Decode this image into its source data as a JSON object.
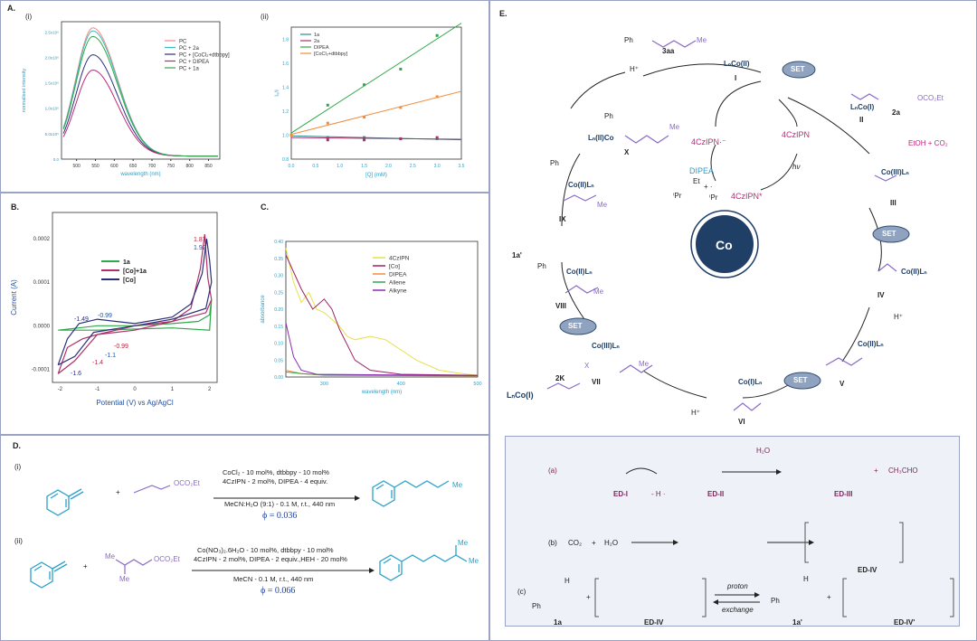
{
  "panels": {
    "A": "A.",
    "A_i": "(i)",
    "A_ii": "(ii)",
    "B": "B.",
    "C": "C.",
    "D": "D.",
    "D_i": "(i)",
    "D_ii": "(ii)",
    "E": "E."
  },
  "chart_data": [
    {
      "type": "line",
      "panel": "A(i)",
      "xlabel": "wavelength (nm)",
      "ylabel": "normalised intensity",
      "xlim": [
        460,
        880
      ],
      "ylim": [
        0,
        2700000
      ],
      "xticks": [
        "500",
        "550",
        "600",
        "650",
        "700",
        "750",
        "800",
        "850"
      ],
      "yticks": [
        "0.0",
        "5.0x10⁵",
        "1.0x10⁶",
        "1.5x10⁶",
        "2.0x10⁶",
        "2.5x10⁶"
      ],
      "series": [
        {
          "name": "PC",
          "color": "#f08c8c",
          "peak": 2520000
        },
        {
          "name": "PC + 2a",
          "color": "#3bb8b8",
          "peak": 2460000
        },
        {
          "name": "PC + [CoCl₂+dtbbpy]",
          "color": "#2b2f7a",
          "peak": 1990000
        },
        {
          "name": "PC + DIPEA",
          "color": "#c0277a",
          "peak": 1690000
        },
        {
          "name": "PC + 1a",
          "color": "#2ea84a",
          "peak": 2350000
        }
      ],
      "peak_x": 543
    },
    {
      "type": "scatter",
      "panel": "A(ii)",
      "xlabel": "[Q] (mM)",
      "ylabel": "I₀/I",
      "xlim": [
        0,
        3.5
      ],
      "ylim": [
        0.8,
        1.9
      ],
      "xticks": [
        "0.0",
        "0.5",
        "1.0",
        "1.5",
        "2.0",
        "2.5",
        "3.0",
        "3.5"
      ],
      "yticks": [
        "0.8",
        "1.0",
        "1.2",
        "1.4",
        "1.6",
        "1.8"
      ],
      "series": [
        {
          "name": "1a",
          "color": "#2b8c8c",
          "x": [
            0,
            0.75,
            1.5,
            2.25,
            3.0
          ],
          "y": [
            1.0,
            0.98,
            0.98,
            0.97,
            0.97
          ]
        },
        {
          "name": "2a",
          "color": "#b0306a",
          "x": [
            0,
            0.75,
            1.5,
            2.25,
            3.0
          ],
          "y": [
            1.0,
            0.96,
            0.96,
            0.97,
            0.98
          ]
        },
        {
          "name": "DIPEA",
          "color": "#2ea84a",
          "x": [
            0,
            0.75,
            1.5,
            2.25,
            3.0
          ],
          "y": [
            1.0,
            1.25,
            1.42,
            1.55,
            1.83
          ]
        },
        {
          "name": "[CoCl₂+dtbbpy]",
          "color": "#f08c3c",
          "x": [
            0,
            0.75,
            1.5,
            2.25,
            3.0
          ],
          "y": [
            1.0,
            1.1,
            1.15,
            1.23,
            1.32
          ]
        }
      ]
    },
    {
      "type": "line",
      "panel": "B",
      "xlabel": "Potential (V) vs Ag/AgCl",
      "ylabel": "Current (A)",
      "xlim": [
        -2.2,
        2.2
      ],
      "ylim": [
        -0.00013,
        0.00026
      ],
      "xticks": [
        "-2",
        "-1",
        "0",
        "1",
        "2"
      ],
      "yticks": [
        "-0.0001",
        "0.0000",
        "0.0001",
        "0.0002"
      ],
      "series": [
        {
          "name": "1a",
          "color": "#2ea84a"
        },
        {
          "name": "[Co]+1a",
          "color": "#b0306a"
        },
        {
          "name": "[Co]",
          "color": "#2b2f7a"
        }
      ],
      "annotations": [
        {
          "text": "1.87",
          "color": "#c0203a"
        },
        {
          "text": "1.92",
          "color": "#2050a0"
        },
        {
          "text": "-1.49",
          "color": "#2b2f7a"
        },
        {
          "text": "-0.99",
          "color": "#2050a0"
        },
        {
          "text": "-0.99",
          "color": "#c0203a"
        },
        {
          "text": "-1.1",
          "color": "#2050a0"
        },
        {
          "text": "-1.4",
          "color": "#c0203a"
        },
        {
          "text": "-1.6",
          "color": "#2b2f7a"
        }
      ]
    },
    {
      "type": "line",
      "panel": "C",
      "xlabel": "wavelength (nm)",
      "ylabel": "absorbance",
      "xlim": [
        250,
        500
      ],
      "ylim": [
        0,
        0.4
      ],
      "xticks": [
        "300",
        "400",
        "500"
      ],
      "yticks": [
        "0.00",
        "0.05",
        "0.10",
        "0.15",
        "0.20",
        "0.25",
        "0.30",
        "0.35",
        "0.40"
      ],
      "series": [
        {
          "name": "4CzIPN",
          "color": "#e6e04a"
        },
        {
          "name": "[Co]",
          "color": "#a02060"
        },
        {
          "name": "DIPEA",
          "color": "#f08c3c"
        },
        {
          "name": "Allene",
          "color": "#2ea84a"
        },
        {
          "name": "Alkyne",
          "color": "#8a2ab0"
        }
      ]
    }
  ],
  "D": {
    "r1": {
      "cond1": "CoCl₂ - 10 mol%, dtbbpy - 10 mol%",
      "cond2": "4CzIPN - 2 mol%, DIPEA - 4 equiv.",
      "cond3": "MeCN:H₂O (9:1) - 0.1 M, r.t., 440 nm",
      "phi": "ϕ = 0.036",
      "ester": "OCO₂Et",
      "me": "Me",
      "plus": "+"
    },
    "r2": {
      "cond1": "Co(NO₃)₂.6H₂O - 10 mol%, dtbbpy - 10 mol%",
      "cond2": "4CzIPN - 2 mol%, DIPEA - 2 equiv.,HEH - 20 mol%",
      "cond3": "MeCN - 0.1 M, r.t., 440 nm",
      "phi": "ϕ = 0.066",
      "ester": "OCO₂Et",
      "me": "Me",
      "plus": "+"
    }
  },
  "E": {
    "co_center": "Co",
    "set": "SET",
    "nodes": {
      "I_label": "LₙCo(II)",
      "I": "I",
      "II_label": "LₙCo(I)",
      "II": "II",
      "sub2a": "2a",
      "ester": "OCO₂Et",
      "etoh": "EtOH + CO₂",
      "III_label": "Co(III)Lₙ",
      "III": "III",
      "IV_label": "Co(II)Lₙ",
      "IV": "IV",
      "hplus1": "H⁺",
      "V_label": "Co(II)Lₙ",
      "V": "V",
      "VI_label": "Co(I)Lₙ",
      "VI": "VI",
      "hplus2": "H⁺",
      "VII_label": "Co(III)Lₙ",
      "VII": "VII",
      "k2": "2K",
      "x": "X",
      "me": "Me",
      "lnco_in": "LₙCo(I)",
      "VIII_label": "Co(II)Lₙ",
      "VIII": "VIII",
      "sub1a": "1a'",
      "ph": "Ph",
      "IX_label": "Co(II)Lₙ",
      "IX": "IX",
      "X_label": "Lₙ(II)Co",
      "X": "X",
      "aa3": "3aa",
      "hplus3": "H⁺"
    },
    "photo": {
      "czipn_rad": "4CzIPN·⁻",
      "czipn": "4CzIPN",
      "czipn_star": "4CzIPN*",
      "hv": "hν",
      "dipea": "DIPEA",
      "et": "Et",
      "ipr1": "ⁱPr",
      "ipr2": "ⁱPr",
      "plus_rad": "+ ·"
    },
    "box": {
      "a": "(a)",
      "b": "(b)",
      "c": "(c)",
      "edI": "ED-I",
      "edII": "ED-II",
      "edIII": "ED-III",
      "edIV": "ED-IV",
      "edIV2": "ED-IV",
      "edIVp": "ED-IV'",
      "minusH": "- H ·",
      "h2o": "H₂O",
      "ch3cho": "CH₃CHO",
      "plus": "+",
      "co2": "CO₂",
      "h2o_b": "H₂O",
      "proton": "proton",
      "exchange": "exchange",
      "a1": "1a",
      "a1p": "1a'",
      "ph": "Ph",
      "H": "H"
    }
  }
}
